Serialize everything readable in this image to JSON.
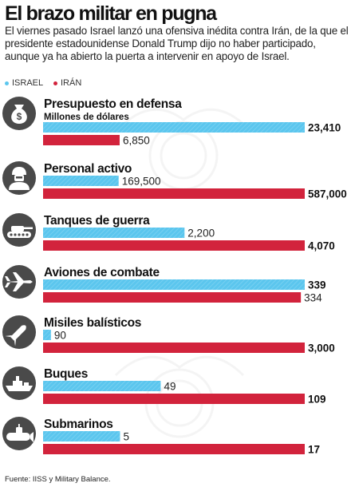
{
  "title": "El brazo militar en pugna",
  "subtitle": "El viernes pasado Israel lanzó una ofensiva inédita contra Irán, de la que el presidente estadounidense Donald Trump dijo no haber participado, aunque ya ha abierto la puerta a intervenir en apoyo de Israel.",
  "legend": [
    {
      "label": "ISRAEL",
      "color": "#5bc6ee"
    },
    {
      "label": "IRÁN",
      "color": "#d2233c"
    }
  ],
  "source": "Fuente: IISS y Military Balance.",
  "chart_data": {
    "type": "bar",
    "orientation": "horizontal",
    "series_colors": {
      "israel": "#5bc6ee",
      "iran": "#d2233c"
    },
    "groups": [
      {
        "title": "Presupuesto en defensa",
        "subtitle": "Millones de dólares",
        "icon": "money-bag-icon",
        "israel": 23410,
        "iran": 6850,
        "israel_label": "23,410",
        "iran_label": "6,850"
      },
      {
        "title": "Personal activo",
        "subtitle": "",
        "icon": "soldier-icon",
        "israel": 169500,
        "iran": 587000,
        "israel_label": "169,500",
        "iran_label": "587,000"
      },
      {
        "title": "Tanques de guerra",
        "subtitle": "",
        "icon": "tank-icon",
        "israel": 2200,
        "iran": 4070,
        "israel_label": "2,200",
        "iran_label": "4,070"
      },
      {
        "title": "Aviones de combate",
        "subtitle": "",
        "icon": "jet-icon",
        "israel": 339,
        "iran": 334,
        "israel_label": "339",
        "iran_label": "334"
      },
      {
        "title": "Misiles balísticos",
        "subtitle": "",
        "icon": "missile-icon",
        "israel": 90,
        "iran": 3000,
        "israel_label": "90",
        "iran_label": "3,000"
      },
      {
        "title": "Buques",
        "subtitle": "",
        "icon": "ship-icon",
        "israel": 49,
        "iran": 109,
        "israel_label": "49",
        "iran_label": "109"
      },
      {
        "title": "Submarinos",
        "subtitle": "",
        "icon": "submarine-icon",
        "israel": 5,
        "iran": 17,
        "israel_label": "5",
        "iran_label": "17"
      }
    ]
  }
}
